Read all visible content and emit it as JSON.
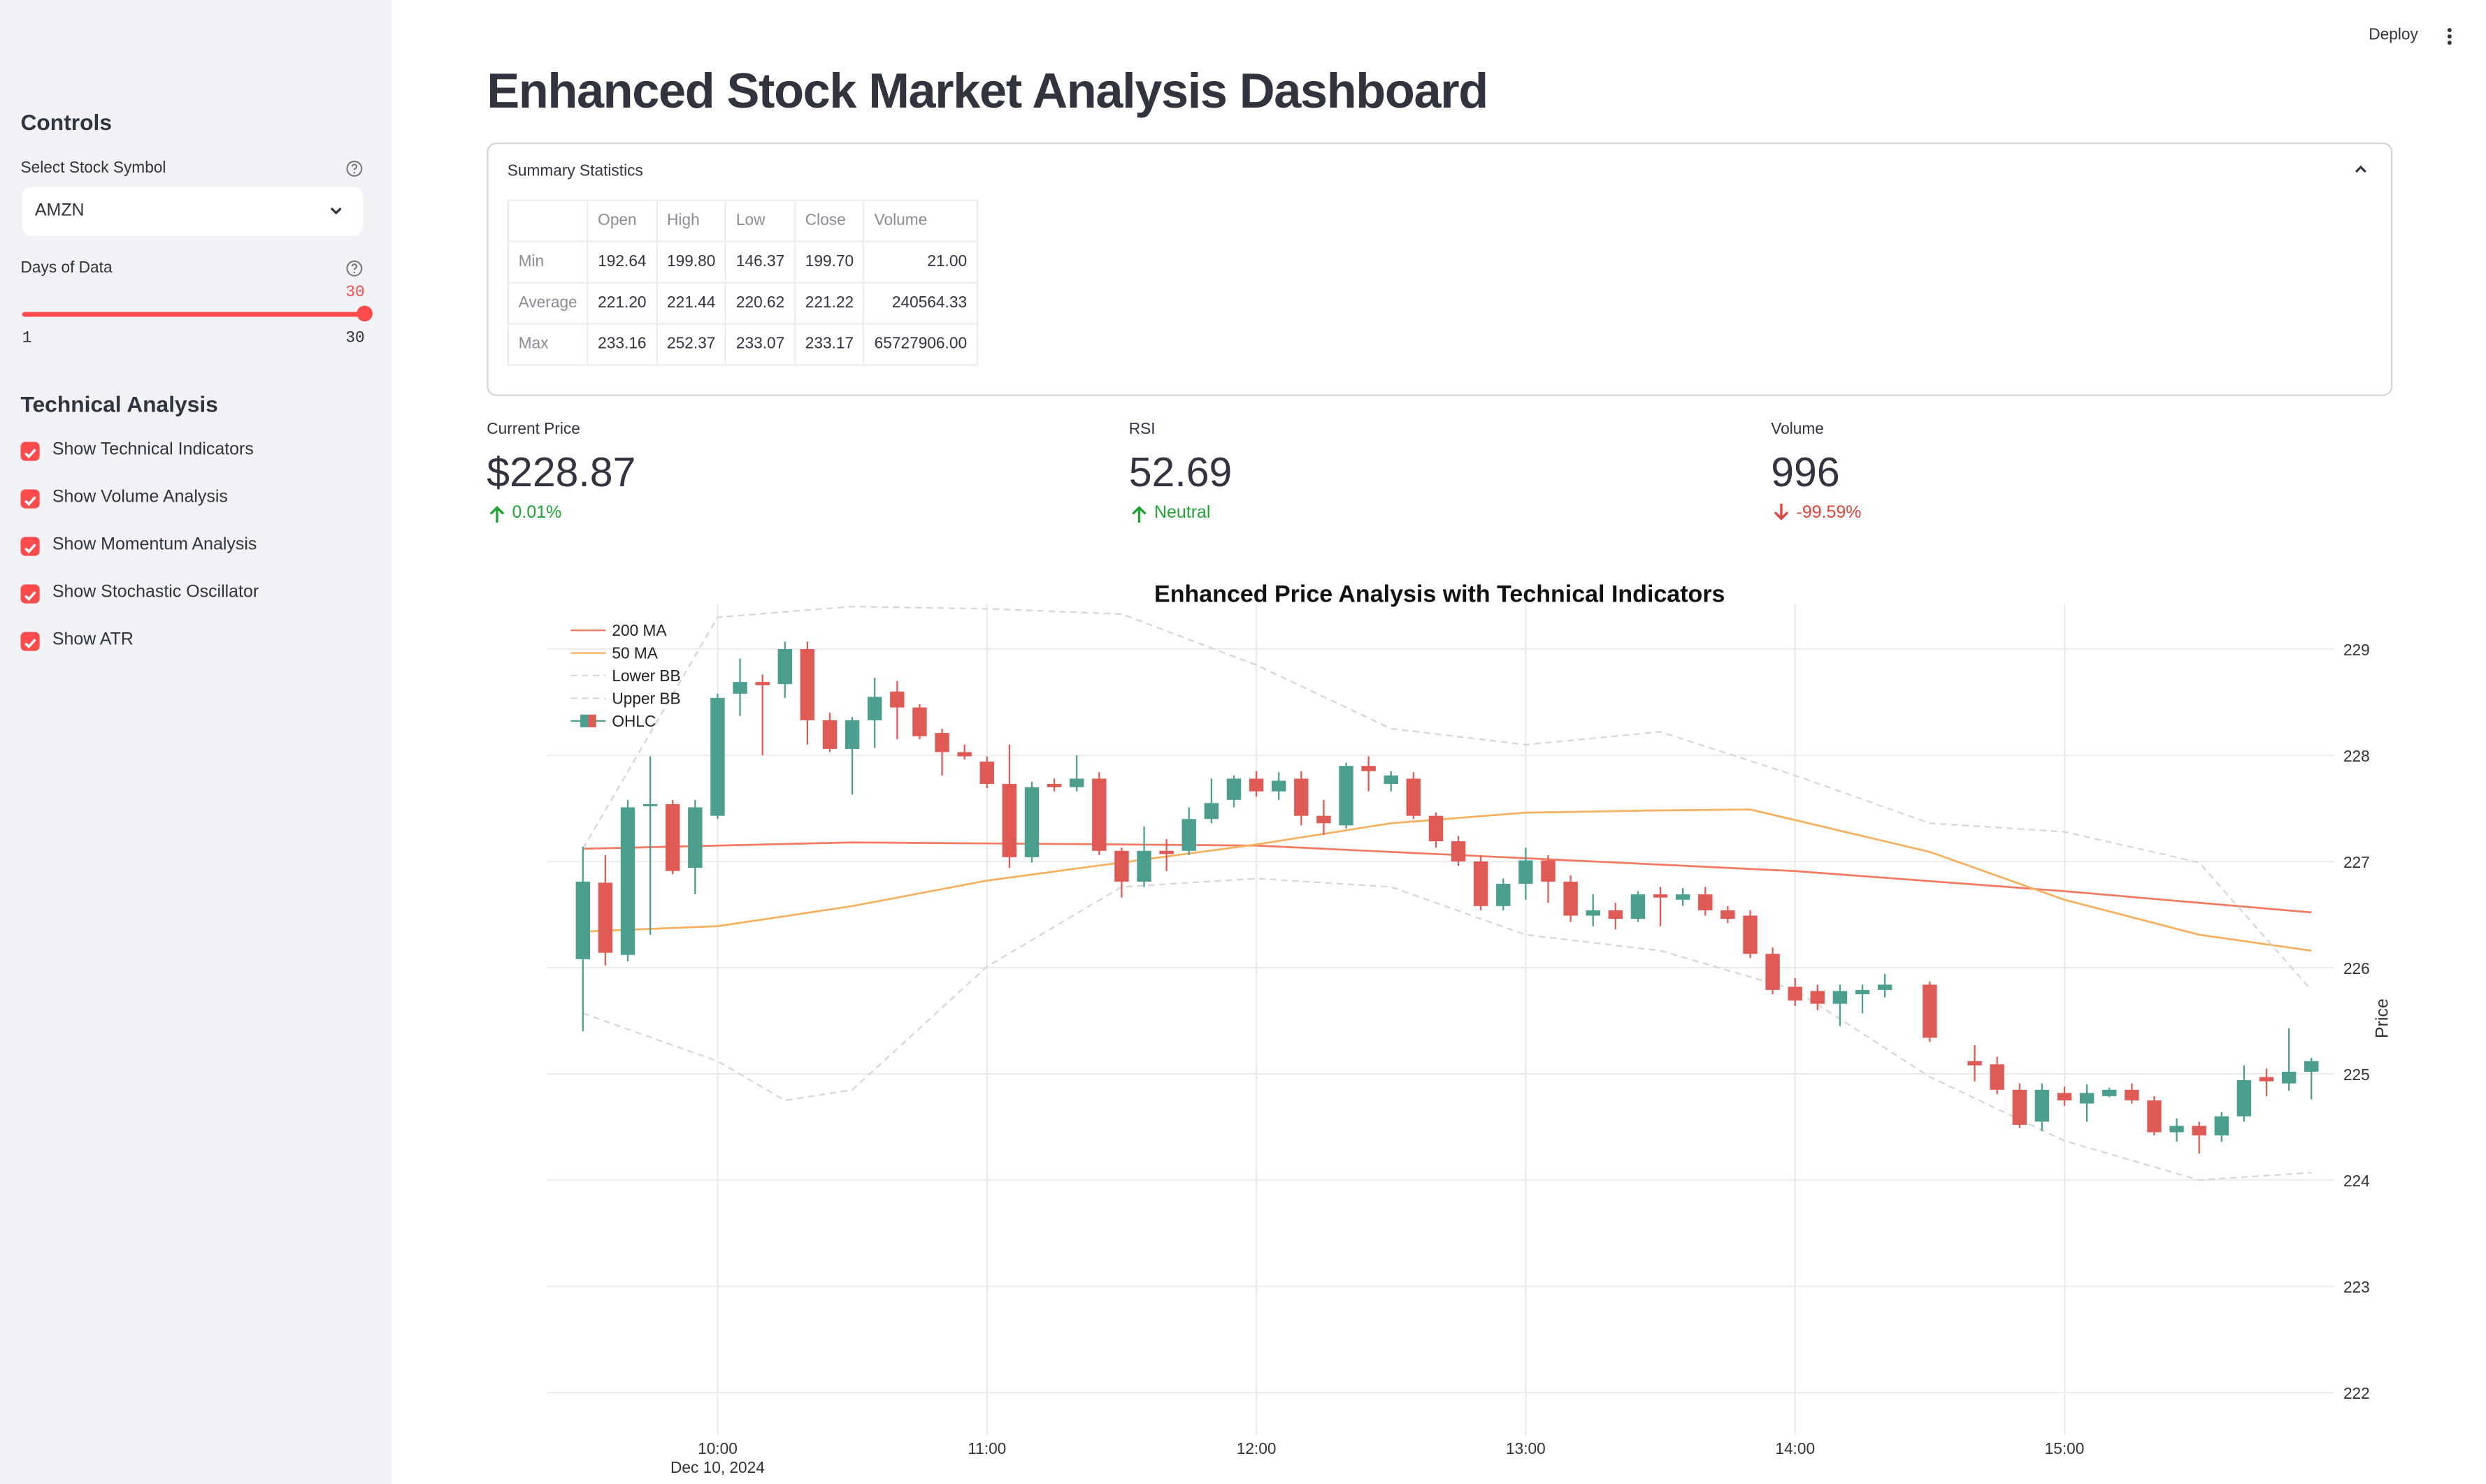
{
  "sidebar": {
    "controls_title": "Controls",
    "symbol": {
      "label": "Select Stock Symbol",
      "value": "AMZN"
    },
    "days": {
      "label": "Days of Data",
      "value": 30,
      "min": 1,
      "max": 30
    },
    "technical_title": "Technical Analysis",
    "checkboxes": [
      {
        "label": "Show Technical Indicators",
        "checked": true
      },
      {
        "label": "Show Volume Analysis",
        "checked": true
      },
      {
        "label": "Show Momentum Analysis",
        "checked": true
      },
      {
        "label": "Show Stochastic Oscillator",
        "checked": true
      },
      {
        "label": "Show ATR",
        "checked": true
      }
    ]
  },
  "header": {
    "deploy": "Deploy",
    "title": "Enhanced Stock Market Analysis Dashboard"
  },
  "summary": {
    "title": "Summary Statistics",
    "columns": [
      "Open",
      "High",
      "Low",
      "Close",
      "Volume"
    ],
    "rows": [
      {
        "label": "Min",
        "values": [
          "192.64",
          "199.80",
          "146.37",
          "199.70",
          "21.00"
        ]
      },
      {
        "label": "Average",
        "values": [
          "221.20",
          "221.44",
          "220.62",
          "221.22",
          "240564.33"
        ]
      },
      {
        "label": "Max",
        "values": [
          "233.16",
          "252.37",
          "233.07",
          "233.17",
          "65727906.00"
        ]
      }
    ]
  },
  "metrics": [
    {
      "label": "Current Price",
      "value": "$228.87",
      "delta": "0.01%",
      "direction": "up"
    },
    {
      "label": "RSI",
      "value": "52.69",
      "delta": "Neutral",
      "direction": "up"
    },
    {
      "label": "Volume",
      "value": "996",
      "delta": "-99.59%",
      "direction": "down"
    }
  ],
  "chart_data": {
    "type": "candlestick",
    "title": "Enhanced Price Analysis with Technical Indicators",
    "y_label": "Price",
    "x_sublabel": "Dec 10, 2024",
    "xlim": [
      "09:22",
      "16:00"
    ],
    "xticks": [
      "10:00",
      "11:00",
      "12:00",
      "13:00",
      "14:00",
      "15:00"
    ],
    "ylim": [
      221.6,
      229.43
    ],
    "yticks": [
      222,
      223,
      224,
      225,
      226,
      227,
      228,
      229
    ],
    "grid": true,
    "y_axis_side": "right",
    "legend": "top-left",
    "series": [
      {
        "name": "200 MA",
        "type": "line",
        "color": "#f07a62",
        "x": [
          "09:30",
          "10:30",
          "11:30",
          "12:00",
          "13:00",
          "14:00",
          "15:00",
          "15:55"
        ],
        "values": [
          227.12,
          227.18,
          227.16,
          227.15,
          227.03,
          226.91,
          226.72,
          226.52
        ]
      },
      {
        "name": "50 MA",
        "type": "line",
        "color": "#f5b060",
        "x": [
          "09:30",
          "10:00",
          "10:30",
          "11:00",
          "11:30",
          "12:00",
          "12:30",
          "13:00",
          "13:30",
          "13:50",
          "14:00",
          "14:30",
          "15:00",
          "15:30",
          "15:55"
        ],
        "values": [
          226.34,
          226.39,
          226.58,
          226.82,
          226.99,
          227.16,
          227.36,
          227.46,
          227.48,
          227.49,
          227.39,
          227.09,
          226.64,
          226.31,
          226.16
        ]
      },
      {
        "name": "Lower BB",
        "type": "line",
        "dash": true,
        "color": "#d6d6d6",
        "x": [
          "09:30",
          "10:00",
          "10:15",
          "10:30",
          "11:00",
          "11:30",
          "12:00",
          "12:30",
          "13:00",
          "13:30",
          "14:00",
          "14:30",
          "15:00",
          "15:30",
          "15:55"
        ],
        "values": [
          225.57,
          225.12,
          224.75,
          224.85,
          226.01,
          226.76,
          226.84,
          226.76,
          226.31,
          226.16,
          225.79,
          224.97,
          224.37,
          224.0,
          224.07
        ]
      },
      {
        "name": "Upper BB",
        "type": "line",
        "dash": true,
        "color": "#d6d6d6",
        "x": [
          "09:30",
          "10:00",
          "10:30",
          "11:00",
          "11:30",
          "12:00",
          "12:30",
          "13:00",
          "13:30",
          "14:00",
          "14:30",
          "15:00",
          "15:30",
          "15:55"
        ],
        "values": [
          227.12,
          229.3,
          229.4,
          229.38,
          229.33,
          228.85,
          228.25,
          228.1,
          228.22,
          227.81,
          227.36,
          227.28,
          226.99,
          225.79
        ]
      },
      {
        "name": "OHLC",
        "type": "candlestick",
        "increasing_color": "#4c9e8f",
        "decreasing_color": "#e05a55",
        "x": [
          "09:30",
          "09:35",
          "09:40",
          "09:45",
          "09:50",
          "09:55",
          "10:00",
          "10:05",
          "10:10",
          "10:15",
          "10:20",
          "10:25",
          "10:30",
          "10:35",
          "10:40",
          "10:45",
          "10:50",
          "10:55",
          "11:00",
          "11:05",
          "11:10",
          "11:15",
          "11:20",
          "11:25",
          "11:30",
          "11:35",
          "11:40",
          "11:45",
          "11:50",
          "11:55",
          "12:00",
          "12:05",
          "12:10",
          "12:15",
          "12:20",
          "12:25",
          "12:30",
          "12:35",
          "12:40",
          "12:45",
          "12:50",
          "12:55",
          "13:00",
          "13:05",
          "13:10",
          "13:15",
          "13:20",
          "13:25",
          "13:30",
          "13:35",
          "13:40",
          "13:45",
          "13:50",
          "13:55",
          "14:00",
          "14:05",
          "14:10",
          "14:15",
          "14:20",
          "14:30",
          "14:40",
          "14:45",
          "14:50",
          "14:55",
          "15:00",
          "15:05",
          "15:10",
          "15:15",
          "15:20",
          "15:25",
          "15:30",
          "15:35",
          "15:40",
          "15:45",
          "15:50",
          "15:55"
        ],
        "open": [
          226.08,
          226.8,
          226.12,
          227.52,
          227.54,
          226.94,
          227.43,
          228.58,
          228.69,
          228.67,
          229.0,
          228.33,
          228.06,
          228.33,
          228.6,
          228.45,
          228.21,
          228.03,
          227.94,
          227.73,
          227.04,
          227.73,
          227.7,
          227.78,
          227.1,
          226.81,
          227.1,
          227.1,
          227.4,
          227.58,
          227.78,
          227.66,
          227.78,
          227.43,
          227.34,
          227.9,
          227.73,
          227.78,
          227.43,
          227.19,
          227.0,
          226.58,
          226.79,
          227.01,
          226.81,
          226.49,
          226.54,
          226.46,
          226.69,
          226.64,
          226.69,
          226.54,
          226.49,
          226.13,
          225.82,
          225.78,
          225.66,
          225.75,
          225.79,
          225.84,
          225.12,
          225.09,
          224.85,
          224.55,
          224.82,
          224.72,
          224.79,
          224.85,
          224.75,
          224.45,
          224.51,
          224.42,
          224.6,
          224.97,
          224.91,
          225.02
        ],
        "high": [
          227.14,
          227.06,
          227.58,
          227.99,
          227.58,
          227.58,
          228.58,
          228.91,
          228.76,
          229.07,
          229.07,
          228.4,
          228.36,
          228.73,
          228.7,
          228.48,
          228.25,
          228.1,
          227.99,
          228.1,
          227.75,
          227.78,
          228.0,
          227.84,
          227.13,
          227.33,
          227.21,
          227.51,
          227.78,
          227.81,
          227.85,
          227.84,
          227.85,
          227.58,
          227.93,
          227.99,
          227.85,
          227.84,
          227.46,
          227.24,
          227.06,
          226.84,
          227.13,
          227.06,
          226.87,
          226.69,
          226.61,
          226.72,
          226.76,
          226.75,
          226.76,
          226.58,
          226.54,
          226.19,
          225.9,
          225.84,
          225.84,
          225.84,
          225.94,
          225.87,
          225.27,
          225.16,
          224.91,
          224.91,
          224.88,
          224.9,
          224.87,
          224.91,
          224.79,
          224.58,
          224.55,
          224.64,
          225.08,
          225.05,
          225.43,
          225.15
        ],
        "low": [
          225.4,
          226.02,
          226.06,
          226.31,
          226.88,
          226.69,
          227.4,
          228.37,
          228.0,
          228.54,
          228.1,
          228.03,
          227.63,
          228.07,
          228.15,
          228.15,
          227.81,
          227.96,
          227.69,
          226.94,
          226.99,
          227.66,
          227.66,
          227.06,
          226.66,
          226.76,
          226.91,
          227.06,
          227.36,
          227.51,
          227.61,
          227.58,
          227.34,
          227.25,
          227.31,
          227.66,
          227.66,
          227.4,
          227.13,
          226.96,
          226.54,
          226.54,
          226.64,
          226.61,
          226.43,
          226.39,
          226.36,
          226.43,
          226.39,
          226.58,
          226.49,
          226.42,
          226.09,
          225.75,
          225.64,
          225.6,
          225.45,
          225.57,
          225.72,
          225.3,
          224.93,
          224.81,
          224.49,
          224.46,
          224.7,
          224.55,
          224.78,
          224.72,
          224.42,
          224.36,
          224.25,
          224.36,
          224.55,
          224.79,
          224.84,
          224.76
        ],
        "close": [
          226.81,
          226.14,
          227.51,
          227.54,
          226.91,
          227.51,
          228.54,
          228.69,
          228.66,
          229.0,
          228.33,
          228.06,
          228.33,
          228.55,
          228.45,
          228.18,
          228.03,
          227.99,
          227.73,
          227.04,
          227.7,
          227.7,
          227.78,
          227.1,
          226.81,
          227.1,
          227.07,
          227.4,
          227.55,
          227.78,
          227.66,
          227.76,
          227.43,
          227.36,
          227.9,
          227.85,
          227.81,
          227.43,
          227.19,
          227.0,
          226.58,
          226.79,
          227.01,
          226.81,
          226.49,
          226.54,
          226.46,
          226.69,
          226.66,
          226.69,
          226.54,
          226.46,
          226.13,
          225.79,
          225.69,
          225.66,
          225.78,
          225.79,
          225.84,
          225.34,
          225.08,
          224.85,
          224.52,
          224.85,
          224.75,
          224.82,
          224.85,
          224.75,
          224.45,
          224.51,
          224.42,
          224.6,
          224.94,
          224.93,
          225.02,
          225.12
        ]
      }
    ]
  }
}
